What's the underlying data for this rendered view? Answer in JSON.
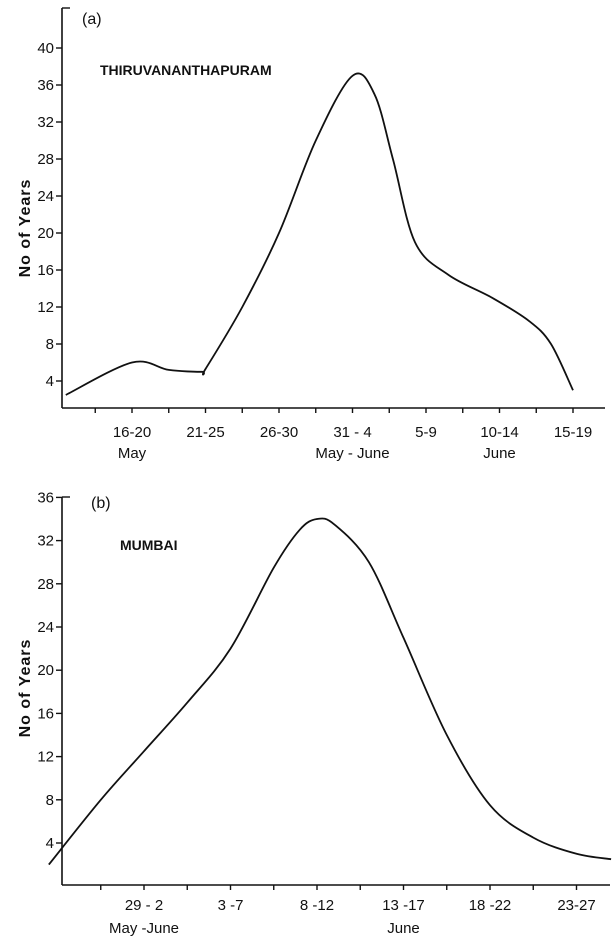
{
  "chart_data": [
    {
      "type": "line",
      "panel_label": "(a)",
      "title": "THIRUVANANTHAPURAM",
      "ylabel": "No of Years",
      "xlabel": "",
      "ylim": [
        0,
        42
      ],
      "yticks": [
        4,
        8,
        12,
        16,
        20,
        24,
        28,
        32,
        36,
        40
      ],
      "categories": [
        "16-20",
        "21-25",
        "26-30",
        "31-4",
        "5-9",
        "10-14",
        "15-19"
      ],
      "category_display": [
        "16-20",
        "21-25",
        "26-30",
        "31 - 4",
        "5-9",
        "10-14",
        "15-19"
      ],
      "category_groups": [
        {
          "label": "May",
          "under": "16-20"
        },
        {
          "label": "May - June",
          "under": "31-4"
        },
        {
          "label": "June",
          "under": "10-14"
        }
      ],
      "x": [
        -0.9,
        0,
        0.5,
        0.95,
        1.0,
        1.5,
        2.0,
        2.5,
        3.0,
        3.3,
        3.55,
        3.85,
        4.3,
        4.9,
        5.4,
        5.7,
        6.0
      ],
      "y": [
        2.5,
        6.0,
        5.2,
        5.0,
        5.3,
        12.0,
        20.0,
        30.0,
        37.0,
        35.0,
        28.0,
        19.0,
        15.5,
        13.0,
        10.5,
        8.0,
        3.0
      ],
      "grid": false
    },
    {
      "type": "line",
      "panel_label": "(b)",
      "title": "MUMBAI",
      "ylabel": "No of Years",
      "xlabel": "",
      "ylim": [
        0,
        36
      ],
      "yticks": [
        4,
        8,
        12,
        16,
        20,
        24,
        28,
        32,
        36
      ],
      "categories": [
        "29-2",
        "3-7",
        "8-12",
        "13-17",
        "18-22",
        "23-27"
      ],
      "category_display": [
        "29 - 2",
        "3 -7",
        "8 -12",
        "13 -17",
        "18 -22",
        "23-27"
      ],
      "category_groups": [
        {
          "label": "May -June",
          "under": "29-2"
        },
        {
          "label": "June",
          "under": "13-17"
        }
      ],
      "x": [
        -1.1,
        -0.5,
        0,
        0.5,
        1.0,
        1.5,
        1.8,
        2.0,
        2.2,
        2.6,
        3.0,
        3.5,
        4.0,
        4.5,
        5.0,
        5.4
      ],
      "y": [
        2.0,
        8.0,
        12.5,
        17.0,
        22.0,
        29.5,
        33.0,
        34.0,
        33.5,
        30.0,
        23.0,
        14.0,
        7.5,
        4.5,
        3.0,
        2.5
      ],
      "grid": false
    }
  ]
}
